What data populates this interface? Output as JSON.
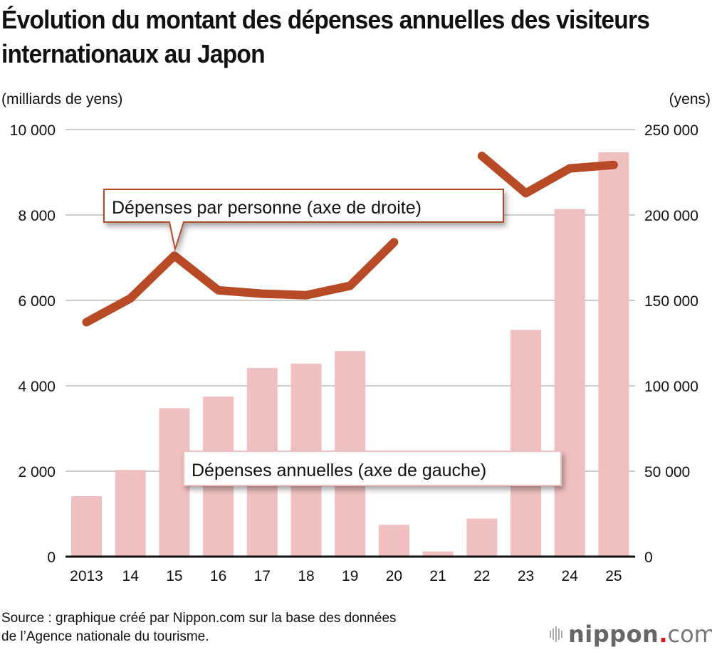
{
  "title": "Évolution du montant des dépenses annuelles des visiteurs internationaux au Japon",
  "chart_data": {
    "type": "bar",
    "title": "Évolution du montant des dépenses annuelles des visiteurs internationaux au Japon",
    "categories": [
      "2013",
      "14",
      "15",
      "16",
      "17",
      "18",
      "19",
      "20",
      "21",
      "22",
      "23",
      "24",
      "25"
    ],
    "left_axis": {
      "label": "(milliards de yens)",
      "range": [
        0,
        10000
      ],
      "ticks": [
        0,
        2000,
        4000,
        6000,
        8000,
        10000
      ],
      "tick_labels": [
        "0",
        "2 000",
        "4 000",
        "6 000",
        "8 000",
        "10 000"
      ]
    },
    "right_axis": {
      "label": "(yens)",
      "range": [
        0,
        250000
      ],
      "ticks": [
        0,
        50000,
        100000,
        150000,
        200000,
        250000
      ],
      "tick_labels": [
        "0",
        "50 000",
        "100 000",
        "150 000",
        "200 000",
        "250 000"
      ]
    },
    "grid": true,
    "series": [
      {
        "name": "Dépenses annuelles (axe de gauche)",
        "type": "bar",
        "axis": "left",
        "color": "#f0c0c0",
        "values": [
          1417,
          2028,
          3477,
          3748,
          4416,
          4519,
          4814,
          745,
          121,
          891,
          5307,
          8140,
          9467
        ]
      },
      {
        "name": "Dépenses par personne (axe de droite)",
        "type": "line",
        "axis": "right",
        "color": "#b84a26",
        "segments": [
          {
            "from": 0,
            "to": 7
          },
          {
            "from": 9,
            "to": 12
          }
        ],
        "values": [
          137261,
          151174,
          176167,
          155896,
          153921,
          153029,
          158531,
          184000,
          null,
          234524,
          212735,
          227242,
          229300
        ]
      }
    ],
    "annotations": [
      {
        "text": "Dépenses par personne (axe de droite)",
        "points_to": "15"
      },
      {
        "text": "Dépenses annuelles (axe de gauche)"
      }
    ]
  },
  "source": {
    "line1": "Source : graphique créé par Nippon.com sur la base des données",
    "line2": "de l’Agence nationale du tourisme."
  },
  "logo": {
    "brand": "nippon",
    "dot": ".",
    "tld": "com"
  },
  "colors": {
    "bar": "#f0c0c0",
    "line": "#b84a26",
    "grid": "#cccccc",
    "axis": "#111111",
    "logo_dot": "#e1151b"
  }
}
